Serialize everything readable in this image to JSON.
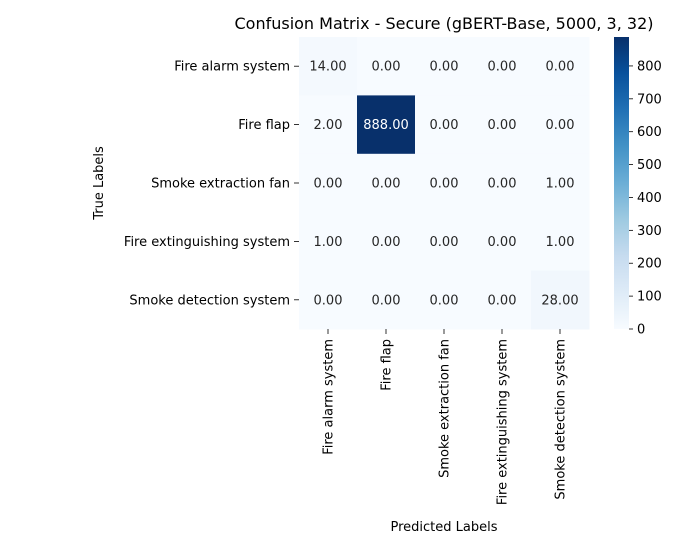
{
  "chart_data": {
    "type": "heatmap",
    "title": "Confusion Matrix - Secure (gBERT-Base, 5000, 3, 32)",
    "xlabel": "Predicted Labels",
    "ylabel": "True Labels",
    "row_labels": [
      "Fire alarm system",
      "Fire flap",
      "Smoke extraction fan",
      "Fire extinguishing system",
      "Smoke detection system"
    ],
    "col_labels": [
      "Fire alarm system",
      "Fire flap",
      "Smoke extraction fan",
      "Fire extinguishing system",
      "Smoke detection system"
    ],
    "values": [
      [
        14,
        0,
        0,
        0,
        0
      ],
      [
        2,
        888,
        0,
        0,
        0
      ],
      [
        0,
        0,
        0,
        0,
        1
      ],
      [
        1,
        0,
        0,
        0,
        1
      ],
      [
        0,
        0,
        0,
        0,
        28
      ]
    ],
    "cell_labels": [
      [
        "14.00",
        "0.00",
        "0.00",
        "0.00",
        "0.00"
      ],
      [
        "2.00",
        "888.00",
        "0.00",
        "0.00",
        "0.00"
      ],
      [
        "0.00",
        "0.00",
        "0.00",
        "0.00",
        "1.00"
      ],
      [
        "1.00",
        "0.00",
        "0.00",
        "0.00",
        "1.00"
      ],
      [
        "0.00",
        "0.00",
        "0.00",
        "0.00",
        "28.00"
      ]
    ],
    "colormap": "Blues",
    "colorbar": {
      "range": [
        0,
        888
      ],
      "ticks": [
        0,
        100,
        200,
        300,
        400,
        500,
        600,
        700,
        800
      ]
    },
    "colors": {
      "low": "#f7fbff",
      "high": "#08306b"
    }
  }
}
